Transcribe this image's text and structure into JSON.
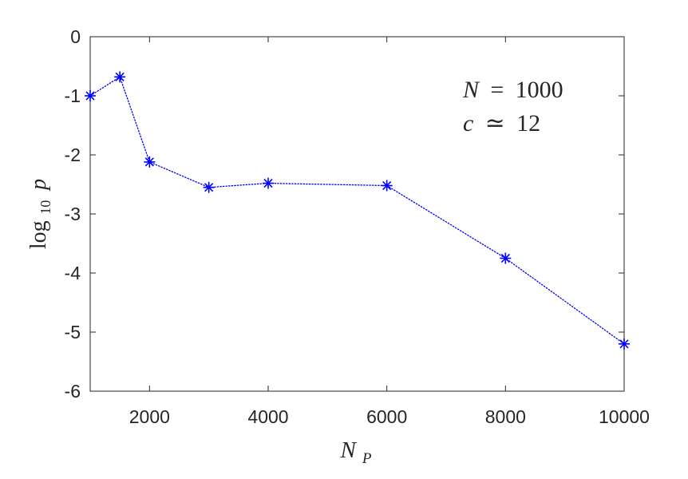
{
  "chart_data": {
    "type": "line",
    "title": "",
    "xlabel": {
      "base": "N",
      "sub": "P"
    },
    "ylabel": {
      "func": "log",
      "sub": "10",
      "var": "p"
    },
    "xlim": [
      1000,
      10000
    ],
    "ylim": [
      -6,
      0
    ],
    "x_ticks": [
      2000,
      4000,
      6000,
      8000,
      10000
    ],
    "x_tick_labels": [
      "2000",
      "4000",
      "6000",
      "8000",
      "10000"
    ],
    "y_ticks": [
      0,
      -1,
      -2,
      -3,
      -4,
      -5,
      -6
    ],
    "y_tick_labels": [
      "0",
      "-1",
      "-2",
      "-3",
      "-4",
      "-5",
      "-6"
    ],
    "grid": false,
    "series": [
      {
        "color": "#0000ff",
        "line_style": "dotted",
        "marker": "asterisk",
        "x": [
          1000,
          1500,
          2000,
          3000,
          4000,
          6000,
          8000,
          10000
        ],
        "y": [
          -1.0,
          -0.68,
          -2.12,
          -2.55,
          -2.48,
          -2.52,
          -3.75,
          -5.2
        ]
      }
    ],
    "annotations": [
      {
        "lhs": "N",
        "op": "=",
        "rhs": "1000"
      },
      {
        "lhs": "c",
        "op": "≃",
        "rhs": "12"
      }
    ]
  }
}
